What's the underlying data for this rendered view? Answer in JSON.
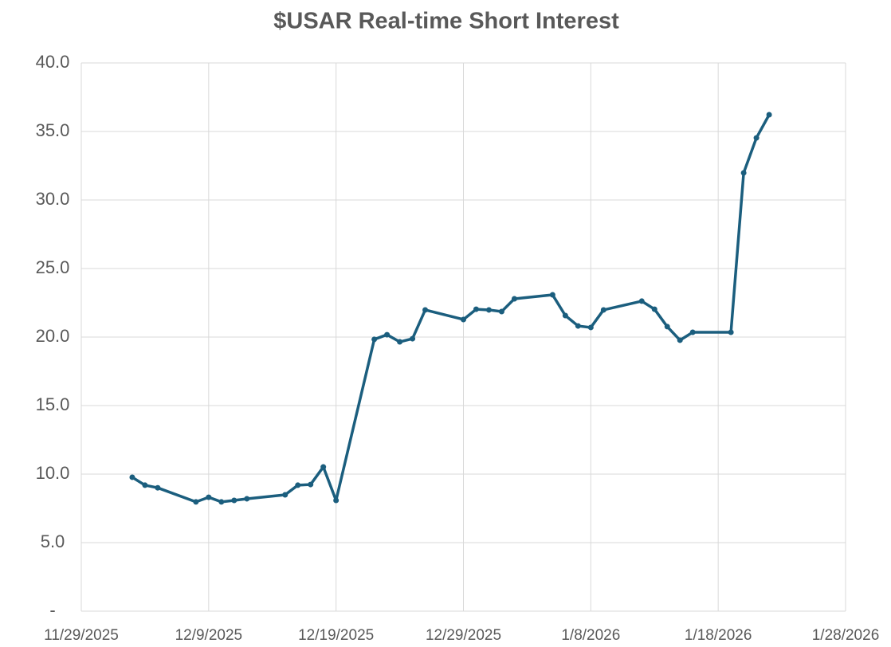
{
  "chart_data": {
    "type": "line",
    "title": "$USAR Real-time Short Interest",
    "x": [
      "12/3/2025",
      "12/4/2025",
      "12/5/2025",
      "12/8/2025",
      "12/9/2025",
      "12/10/2025",
      "12/11/2025",
      "12/12/2025",
      "12/15/2025",
      "12/16/2025",
      "12/17/2025",
      "12/18/2025",
      "12/19/2025",
      "12/22/2025",
      "12/23/2025",
      "12/24/2025",
      "12/25/2025",
      "12/26/2025",
      "12/29/2025",
      "12/30/2025",
      "12/31/2025",
      "1/1/2026",
      "1/2/2026",
      "1/5/2026",
      "1/6/2026",
      "1/7/2026",
      "1/8/2026",
      "1/9/2026",
      "1/12/2026",
      "1/13/2026",
      "1/14/2026",
      "1/15/2026",
      "1/16/2026",
      "1/19/2026",
      "1/20/2026",
      "1/21/2026",
      "1/22/2026"
    ],
    "series": [
      {
        "name": "$USAR",
        "color": "#1b5e7e",
        "values": [
          9.77,
          9.19,
          9.0,
          7.97,
          8.31,
          7.97,
          8.08,
          8.2,
          8.49,
          9.19,
          9.24,
          10.52,
          8.08,
          19.83,
          20.17,
          19.65,
          19.88,
          21.98,
          21.28,
          22.03,
          21.98,
          21.86,
          22.79,
          23.08,
          21.57,
          20.81,
          20.7,
          21.98,
          22.62,
          22.03,
          20.76,
          19.77,
          20.35,
          20.35,
          31.98,
          34.53,
          36.22
        ]
      }
    ],
    "xlim": [
      "11/29/2025",
      "1/28/2026"
    ],
    "xticks": [
      "11/29/2025",
      "12/9/2025",
      "12/19/2025",
      "12/29/2025",
      "1/8/2026",
      "1/18/2026",
      "1/28/2026"
    ],
    "ylim": [
      0,
      40
    ],
    "yticks": [
      {
        "value": 0,
        "label": "-"
      },
      {
        "value": 5,
        "label": "5.0"
      },
      {
        "value": 10,
        "label": "10.0"
      },
      {
        "value": 15,
        "label": "15.0"
      },
      {
        "value": 20,
        "label": "20.0"
      },
      {
        "value": 25,
        "label": "25.0"
      },
      {
        "value": 30,
        "label": "30.0"
      },
      {
        "value": 35,
        "label": "35.0"
      },
      {
        "value": 40,
        "label": "40.0"
      }
    ],
    "grid": true
  }
}
